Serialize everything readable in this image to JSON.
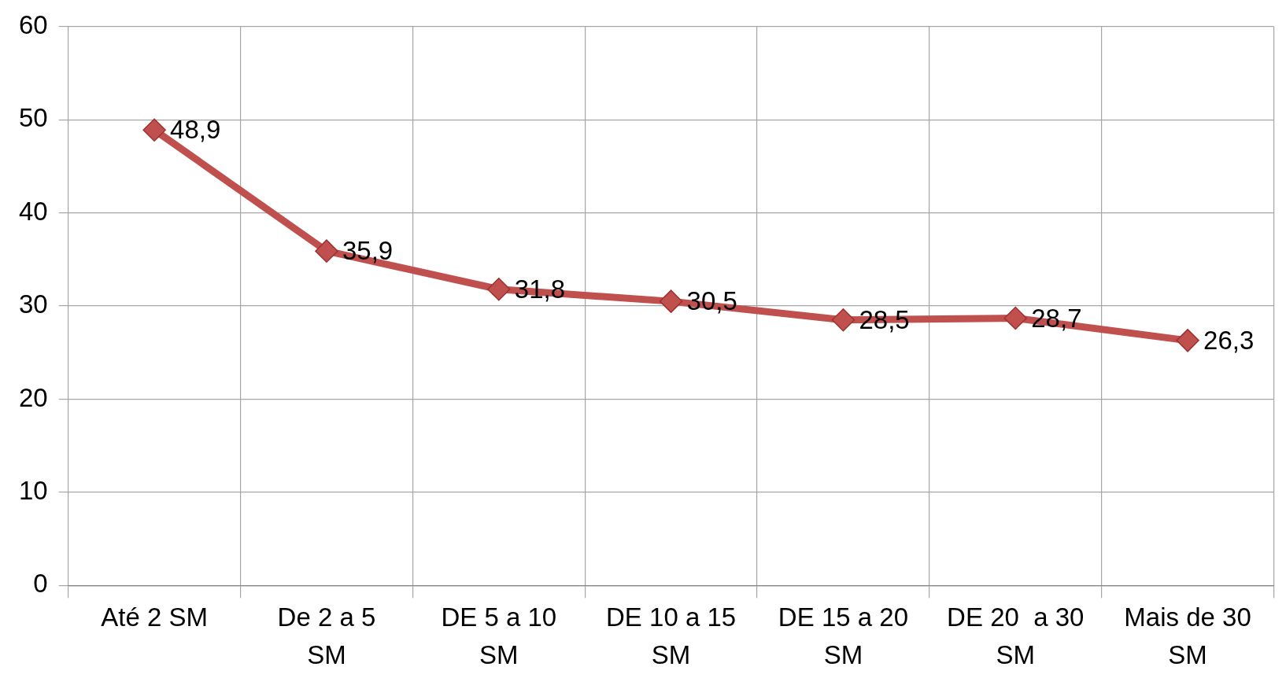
{
  "chart_data": {
    "type": "line",
    "categories": [
      "Até 2 SM",
      "De 2 a 5 SM",
      "DE 5 a 10 SM",
      "DE 10 a 15 SM",
      "DE 15 a 20 SM",
      "DE 20  a 30 SM",
      "Mais de 30 SM"
    ],
    "series": [
      {
        "color": "#c0504d",
        "values": [
          48.9,
          35.9,
          31.8,
          30.5,
          28.5,
          28.7,
          26.3
        ]
      }
    ],
    "value_labels": [
      "48,9",
      "35,9",
      "31,8",
      "30,5",
      "28,5",
      "28,7",
      "26,3"
    ],
    "ylim": [
      0,
      60
    ],
    "yticks": [
      0,
      10,
      20,
      30,
      40,
      50,
      60
    ],
    "grid": true,
    "legend": false,
    "marker": "diamond",
    "line_style": "solid"
  }
}
